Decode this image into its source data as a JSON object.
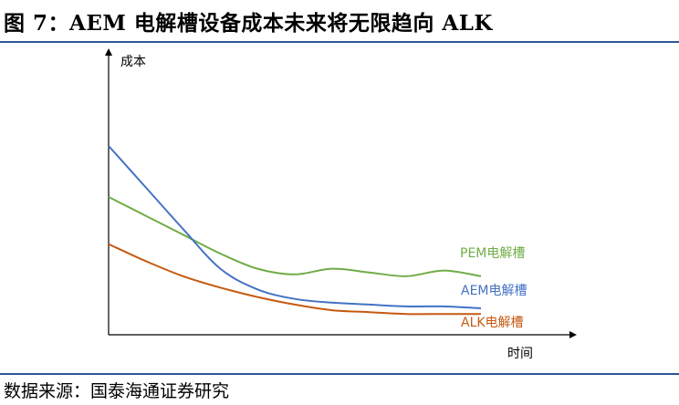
{
  "title": "图 7：AEM 电解槽设备成本未来将无限趋向 ALK",
  "source": "数据来源：国泰海通证券研究",
  "colors": {
    "rule": "#2f5597",
    "pem": "#70ad47",
    "aem": "#4472c4",
    "alk": "#c55a11"
  },
  "chart_data": {
    "type": "line",
    "title": "",
    "ylabel": "成本",
    "xlabel": "时间",
    "x": [
      0,
      1,
      2,
      3,
      4,
      5,
      6,
      7,
      8,
      9,
      10
    ],
    "ylim": [
      0,
      10
    ],
    "grid": false,
    "series": [
      {
        "name": "PEM电解槽",
        "color": "#70ad47",
        "values": [
          7.3,
          6.3,
          5.3,
          4.3,
          3.5,
          3.2,
          3.5,
          3.3,
          3.1,
          3.4,
          3.1
        ]
      },
      {
        "name": "AEM电解槽",
        "color": "#4472c4",
        "values": [
          10.0,
          7.8,
          5.6,
          3.5,
          2.4,
          1.9,
          1.7,
          1.6,
          1.5,
          1.5,
          1.4
        ]
      },
      {
        "name": "ALK电解槽",
        "color": "#c55a11",
        "values": [
          4.8,
          3.9,
          3.1,
          2.5,
          2.0,
          1.6,
          1.3,
          1.2,
          1.1,
          1.1,
          1.1
        ]
      }
    ]
  }
}
